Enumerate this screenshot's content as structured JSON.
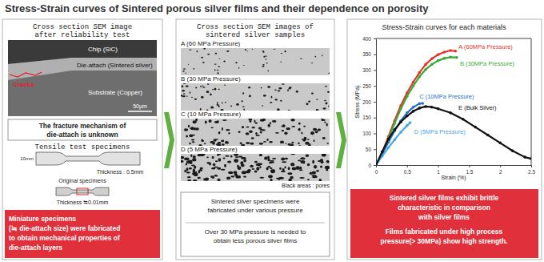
{
  "title": "Stress-Strain curves of Sintered porous silver films and their dependence on porosity",
  "panels": [
    {
      "heading": [
        "Cross section SEM image",
        "after reliability test"
      ],
      "image_labels": {
        "chip": "Chip (SiC)",
        "die_attach": "Die-attach (Sintered silver)",
        "cracks": "Cracks",
        "substrate": "Substrate (Copper)",
        "scale": "50μm"
      },
      "note": [
        "The fracture mechanism of",
        "die-attach is unknown"
      ],
      "subheading": "Tensile test specimens",
      "specimen": {
        "length": "10mm",
        "thickness_original": "Thickness : 0.5mm",
        "original": "Original specimens",
        "thickness_mini": "Thickness ≒0.01mm"
      },
      "conclusion": [
        "Miniature specimens",
        "(≒ die-attach size) were fabricated",
        "to obtain mechanical properties of",
        "die-attach layers"
      ]
    },
    {
      "heading": [
        "Cross section SEM images of",
        "sintered silver samples"
      ],
      "samples": [
        "A (60 MPa Pressure)",
        "B (30 MPa Pressure)",
        "C (10 MPa Pressure)",
        "D (5 MPa Pressure)"
      ],
      "caption": "Black areas : pores",
      "notes": [
        [
          "Sintered silver specimens were",
          "fabricated under various pressure"
        ],
        [
          "Over 30 MPa pressure is needed to",
          "obtain less porous silver films"
        ]
      ]
    },
    {
      "conclusion": [
        [
          "Sintered silver films exhibit brittle",
          "characteristic in comparison",
          "with silver films"
        ],
        [
          "Films fabricated under high process",
          "pressure(> 30MPa) show high strength."
        ]
      ]
    }
  ],
  "chart_data": {
    "type": "line",
    "title": "Stress-Strain curves for each materials",
    "x_label": "Strain (%)",
    "y_label": "Stress (MPa)",
    "xlim": [
      0,
      2.5
    ],
    "ylim": [
      0,
      400
    ],
    "xticks": [
      0,
      0.5,
      1,
      1.5,
      2,
      2.5
    ],
    "yticks": [
      0,
      50,
      100,
      150,
      200,
      250,
      300,
      350,
      400
    ],
    "grid": false,
    "marker": "circle",
    "line_style": "solid",
    "series": [
      {
        "name": "A (60MPa Pressure)",
        "color": "#e8322c",
        "x": [
          0,
          0.1,
          0.2,
          0.3,
          0.4,
          0.5,
          0.6,
          0.7,
          0.8,
          0.9,
          1.0,
          1.1,
          1.2,
          1.28
        ],
        "values": [
          0,
          40,
          90,
          140,
          188,
          228,
          262,
          292,
          318,
          336,
          349,
          357,
          362,
          360
        ]
      },
      {
        "name": "B (30MPa Pressure)",
        "color": "#3aaa35",
        "x": [
          0,
          0.1,
          0.2,
          0.3,
          0.4,
          0.5,
          0.6,
          0.7,
          0.8,
          0.9,
          1.0,
          1.1,
          1.2,
          1.3
        ],
        "values": [
          0,
          38,
          85,
          132,
          178,
          217,
          250,
          279,
          302,
          318,
          330,
          337,
          341,
          340
        ]
      },
      {
        "name": "C (10MPa Pressure)",
        "color": "#2a6fc9",
        "x": [
          0,
          0.1,
          0.2,
          0.3,
          0.4,
          0.5,
          0.6,
          0.7,
          0.75
        ],
        "values": [
          0,
          35,
          72,
          108,
          140,
          165,
          183,
          194,
          195
        ]
      },
      {
        "name": "D (5MPa Pressure)",
        "color": "#4aa8e0",
        "x": [
          0,
          0.1,
          0.2,
          0.3,
          0.4,
          0.5,
          0.55
        ],
        "values": [
          0,
          28,
          55,
          80,
          104,
          125,
          134
        ]
      },
      {
        "name": "E (Bulk Silver)",
        "color": "#111111",
        "x": [
          0,
          0.1,
          0.2,
          0.3,
          0.4,
          0.5,
          0.6,
          0.7,
          0.8,
          0.9,
          1.0,
          1.2,
          1.4,
          1.6,
          1.8,
          2.0,
          2.2,
          2.4,
          2.5
        ],
        "values": [
          0,
          42,
          82,
          112,
          136,
          155,
          170,
          180,
          185,
          183,
          178,
          165,
          145,
          120,
          95,
          70,
          45,
          25,
          20
        ]
      }
    ]
  }
}
